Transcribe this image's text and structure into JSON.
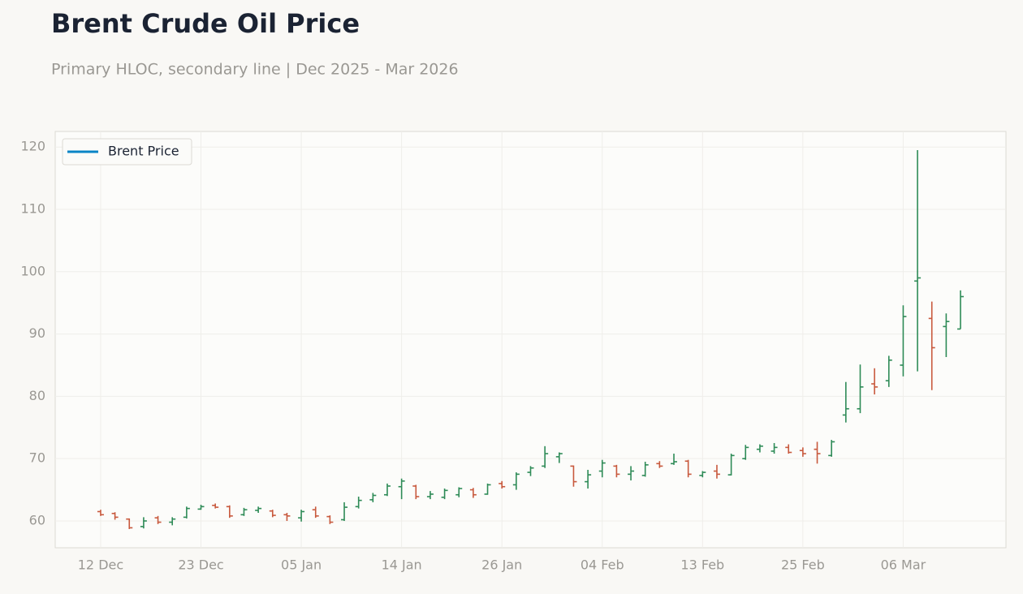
{
  "chart_data": {
    "type": "ohlc",
    "title": "Brent Crude Oil Price",
    "subtitle": "Primary HLOC, secondary line | Dec 2025 - Mar 2026",
    "categories": [
      "12 Dec",
      null,
      null,
      null,
      null,
      null,
      null,
      "23 Dec",
      null,
      null,
      null,
      null,
      null,
      null,
      "05 Jan",
      null,
      null,
      null,
      null,
      null,
      null,
      "14 Jan",
      null,
      null,
      null,
      null,
      null,
      null,
      "26 Jan",
      null,
      null,
      null,
      null,
      null,
      null,
      "04 Feb",
      null,
      null,
      null,
      null,
      null,
      null,
      "13 Feb",
      null,
      null,
      null,
      null,
      null,
      null,
      "25 Feb",
      null,
      null,
      null,
      null,
      null,
      null,
      "06 Mar",
      null,
      null,
      null,
      null
    ],
    "series": [
      {
        "name": "Brent Price",
        "color": "#0a84c6",
        "open": [
          61.5,
          61.2,
          60.3,
          59.1,
          60.5,
          59.8,
          60.6,
          61.9,
          62.5,
          62.3,
          61.0,
          61.7,
          61.6,
          61.0,
          60.5,
          61.8,
          60.7,
          60.2,
          62.3,
          63.4,
          64.2,
          65.5,
          65.6,
          63.9,
          63.8,
          64.2,
          65.0,
          64.3,
          66.0,
          65.8,
          67.8,
          68.8,
          70.3,
          68.8,
          66.3,
          68.0,
          68.8,
          67.5,
          67.3,
          69.2,
          69.2,
          69.6,
          67.3,
          68.0,
          67.4,
          70.0,
          71.5,
          71.2,
          71.8,
          71.3,
          71.5,
          70.5,
          77.0,
          78.0,
          82.0,
          82.5,
          85.0,
          98.5,
          92.5,
          91.2,
          90.8
        ],
        "high": [
          61.8,
          61.4,
          60.4,
          60.6,
          60.8,
          60.6,
          62.3,
          62.6,
          62.8,
          62.5,
          62.1,
          62.3,
          61.8,
          61.3,
          61.8,
          62.3,
          60.9,
          63.0,
          63.9,
          64.5,
          66.0,
          66.8,
          65.8,
          64.8,
          65.2,
          65.4,
          65.3,
          66.0,
          66.4,
          67.8,
          68.8,
          72.0,
          71.0,
          68.9,
          68.2,
          69.8,
          69.0,
          68.8,
          69.5,
          69.6,
          70.8,
          69.8,
          68.0,
          69.0,
          70.8,
          72.2,
          72.3,
          72.5,
          72.3,
          71.8,
          72.7,
          73.0,
          82.3,
          85.1,
          84.5,
          86.5,
          94.6,
          119.5,
          95.2,
          93.3,
          97.0
        ],
        "low": [
          60.8,
          60.2,
          58.7,
          58.8,
          59.5,
          59.3,
          60.4,
          61.8,
          62.0,
          60.5,
          60.8,
          61.3,
          60.6,
          60.0,
          59.9,
          60.5,
          59.5,
          60.0,
          62.0,
          63.0,
          64.0,
          63.5,
          63.5,
          63.5,
          63.5,
          63.8,
          63.7,
          64.2,
          65.2,
          65.0,
          67.2,
          68.5,
          69.3,
          65.5,
          65.2,
          67.0,
          67.0,
          66.5,
          67.1,
          68.5,
          69.0,
          67.0,
          67.0,
          66.8,
          67.3,
          69.8,
          71.0,
          70.8,
          70.8,
          70.3,
          69.2,
          70.3,
          75.8,
          77.3,
          80.3,
          81.5,
          83.2,
          84.0,
          81.0,
          86.3,
          90.8
        ],
        "close": [
          61.0,
          60.6,
          58.9,
          60.0,
          59.8,
          60.3,
          62.0,
          62.3,
          62.2,
          60.8,
          61.8,
          62.0,
          60.9,
          60.8,
          61.5,
          60.8,
          59.8,
          62.2,
          63.3,
          64.1,
          65.6,
          66.4,
          63.9,
          64.3,
          64.9,
          65.2,
          64.2,
          65.8,
          65.5,
          67.5,
          68.5,
          70.8,
          70.8,
          66.3,
          67.4,
          69.3,
          67.5,
          68.0,
          69.0,
          68.8,
          69.5,
          67.5,
          67.8,
          67.5,
          70.5,
          71.8,
          72.0,
          71.8,
          71.0,
          70.8,
          70.8,
          72.7,
          78.0,
          81.5,
          81.5,
          85.8,
          92.8,
          99.0,
          87.8,
          92.0,
          96.0
        ]
      }
    ],
    "up_color": "#2e8b57",
    "down_color": "#c8593d",
    "ylim": [
      55.7,
      122.5
    ],
    "yticks": [
      60,
      70,
      80,
      90,
      100,
      110,
      120
    ],
    "grid": true,
    "legend": "upper left"
  }
}
